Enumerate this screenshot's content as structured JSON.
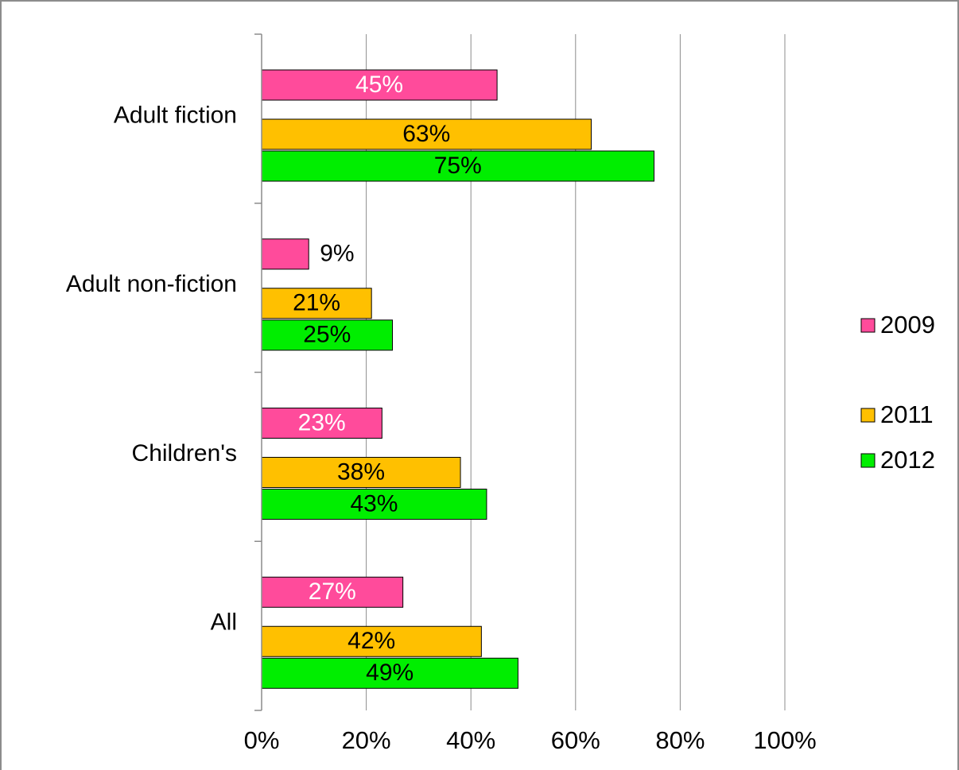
{
  "chart_data": {
    "type": "bar",
    "orientation": "horizontal",
    "categories": [
      "Adult fiction",
      "Adult non-fiction",
      "Children's",
      "All"
    ],
    "series": [
      {
        "name": "2009",
        "values": [
          45,
          9,
          23,
          27
        ],
        "labels": [
          "45%",
          "9%",
          "23%",
          "27%"
        ],
        "color": "#ff4b9b",
        "label_color": "#ffffff"
      },
      {
        "name": "2011",
        "values": [
          63,
          21,
          38,
          42
        ],
        "labels": [
          "63%",
          "21%",
          "38%",
          "42%"
        ],
        "color": "#ffc000",
        "label_color": "#000000"
      },
      {
        "name": "2012",
        "values": [
          75,
          25,
          43,
          49
        ],
        "labels": [
          "75%",
          "25%",
          "43%",
          "49%"
        ],
        "color": "#00ee00",
        "label_color": "#000000"
      }
    ],
    "x_ticks": [
      "0%",
      "20%",
      "40%",
      "60%",
      "80%",
      "100%"
    ],
    "xlim": [
      0,
      100
    ],
    "xlabel": "",
    "ylabel": "",
    "title": "",
    "grid": true,
    "legend_position": "right"
  }
}
